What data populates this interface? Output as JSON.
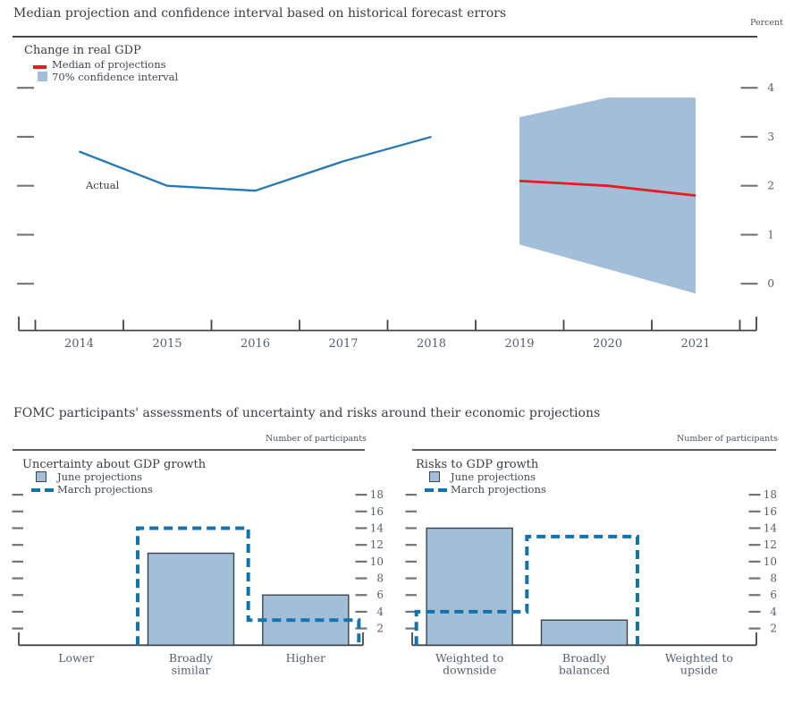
{
  "colors": {
    "text_dark": "#383d45",
    "text_axis": "#535f6e",
    "rule": "#42464b",
    "axis": "#42464b",
    "tick_dash": "#70757c",
    "actual_line": "#2379b6",
    "median_line": "#e81b1e",
    "band_fill": "#a3bed9",
    "dashed_line": "#1174ae",
    "bar_fill": "#a3bed9",
    "bar_border": "#39434c"
  },
  "top_chart": {
    "title": "Median projection and confidence interval based on historical forecast errors",
    "unit_label": "Percent",
    "panel_label": "Change in real GDP",
    "legend": [
      {
        "swatch": "red-line-swatch",
        "label": "Median of projections"
      },
      {
        "swatch": "blue-square-swatch",
        "label": "70% confidence interval"
      }
    ],
    "annotation": "Actual",
    "chart_data": {
      "type": "line+band",
      "title": "Change in real GDP",
      "ylabel": "Percent",
      "x_years": [
        2014,
        2015,
        2016,
        2017,
        2018,
        2019,
        2020,
        2021
      ],
      "y_ticks": [
        0,
        1,
        2,
        3,
        4
      ],
      "ylim": [
        -1,
        5
      ],
      "actual": {
        "years": [
          2014,
          2015,
          2016,
          2017,
          2018
        ],
        "values": [
          2.7,
          2.0,
          1.9,
          2.5,
          3.0
        ]
      },
      "median": {
        "years": [
          2019,
          2020,
          2021
        ],
        "values": [
          2.1,
          2.0,
          1.8
        ]
      },
      "band70": {
        "years": [
          2019,
          2020,
          2021
        ],
        "upper": [
          3.4,
          3.8,
          3.8
        ],
        "lower": [
          0.8,
          0.3,
          -0.2
        ]
      }
    }
  },
  "bottom_section": {
    "title": "FOMC participants' assessments of uncertainty and risks around their economic projections",
    "panels": [
      {
        "heading": "Uncertainty about GDP growth",
        "axis_label": "Number of participants",
        "legend": [
          {
            "swatch": "bar-swatch",
            "label": "June projections"
          },
          {
            "swatch": "dash-swatch",
            "label": "March projections"
          }
        ],
        "chart_data": {
          "type": "bar+step",
          "categories": [
            "Lower",
            "Broadly similar",
            "Higher"
          ],
          "label_lines": [
            [
              "Lower"
            ],
            [
              "Broadly",
              "similar"
            ],
            [
              "Higher"
            ]
          ],
          "series": [
            {
              "name": "June projections",
              "values": [
                0,
                11,
                6
              ]
            },
            {
              "name": "March projections",
              "values": [
                0,
                14,
                3
              ]
            }
          ],
          "y_ticks": [
            2,
            4,
            6,
            8,
            10,
            12,
            14,
            16,
            18
          ],
          "ylim": [
            0,
            19
          ]
        }
      },
      {
        "heading": "Risks to GDP growth",
        "axis_label": "Number of participants",
        "legend": [
          {
            "swatch": "bar-swatch",
            "label": "June projections"
          },
          {
            "swatch": "dash-swatch",
            "label": "March projections"
          }
        ],
        "chart_data": {
          "type": "bar+step",
          "categories": [
            "Weighted to downside",
            "Broadly balanced",
            "Weighted to upside"
          ],
          "label_lines": [
            [
              "Weighted to",
              "downside"
            ],
            [
              "Broadly",
              "balanced"
            ],
            [
              "Weighted to",
              "upside"
            ]
          ],
          "series": [
            {
              "name": "June projections",
              "values": [
                14,
                3,
                0
              ]
            },
            {
              "name": "March projections",
              "values": [
                4,
                13,
                0
              ]
            }
          ],
          "y_ticks": [
            2,
            4,
            6,
            8,
            10,
            12,
            14,
            16,
            18
          ],
          "ylim": [
            0,
            19
          ]
        }
      }
    ]
  }
}
